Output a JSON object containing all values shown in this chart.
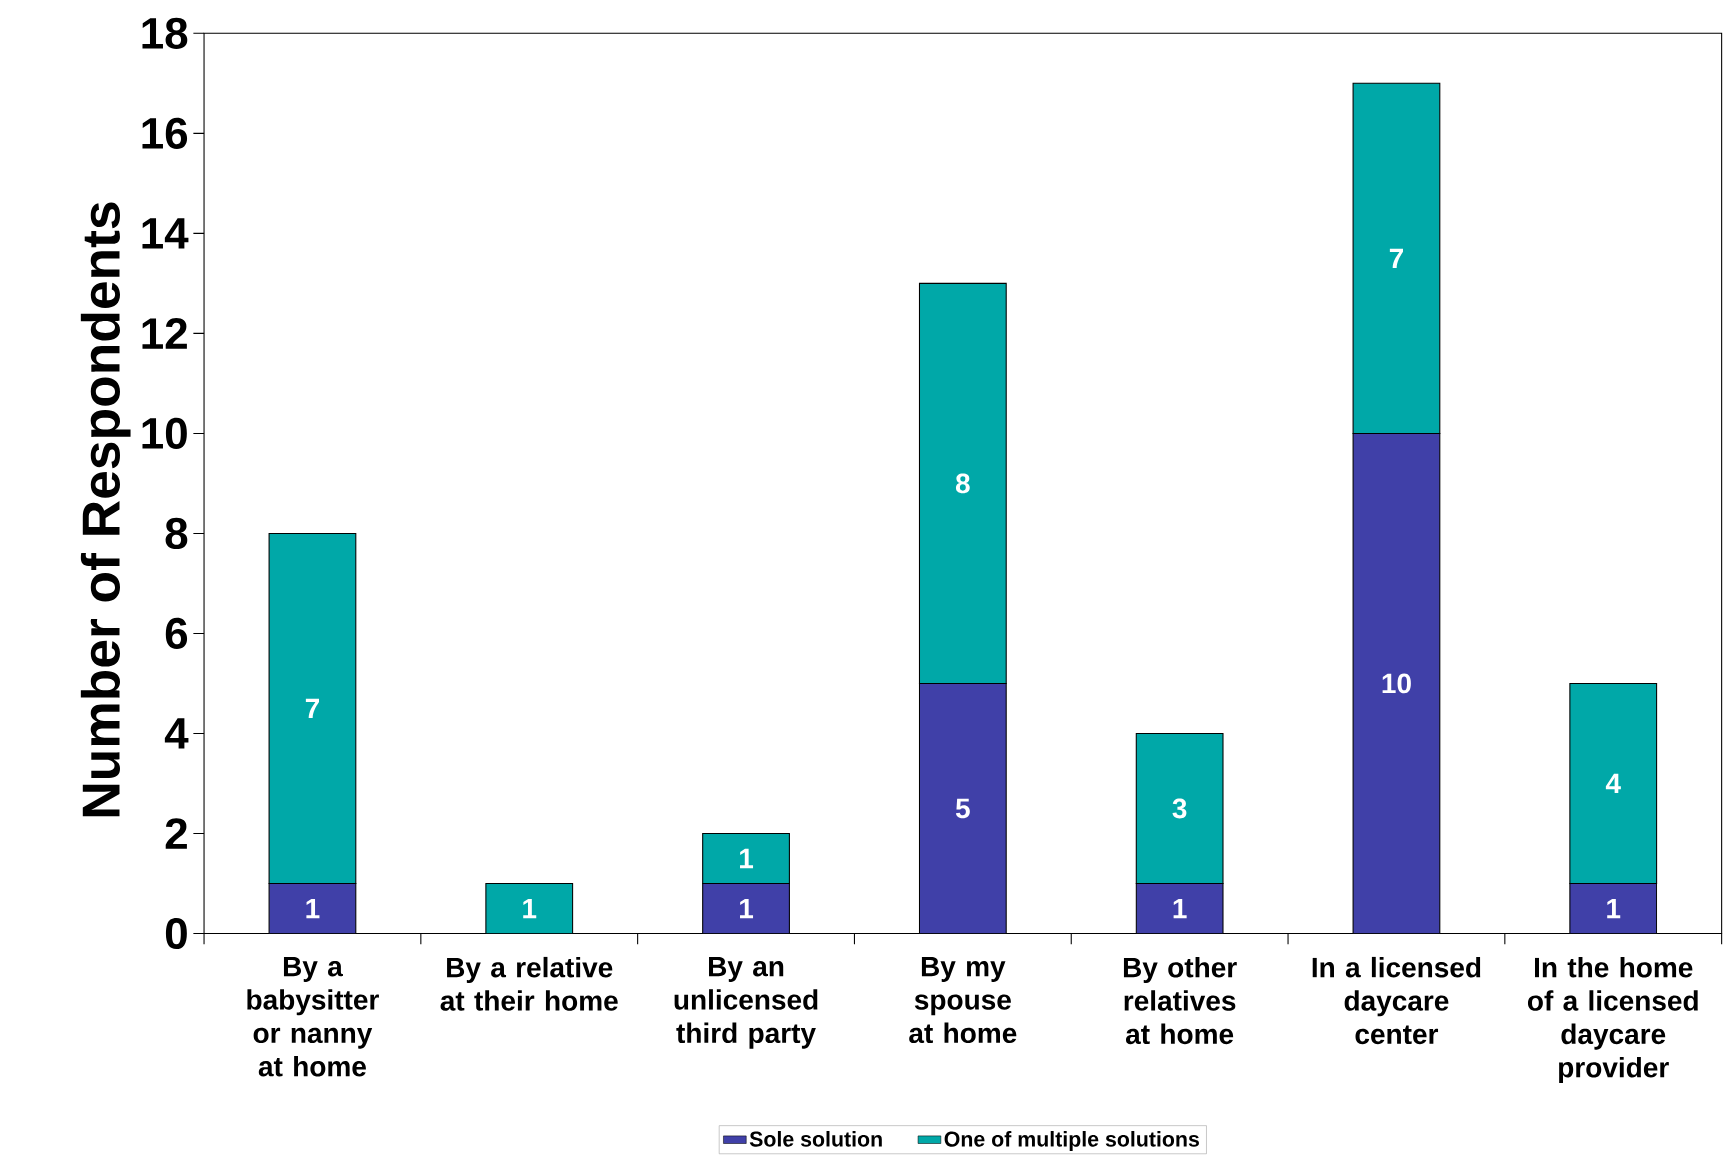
{
  "chart_data": {
    "type": "bar",
    "stacked": true,
    "ylabel": "Number of Respondents",
    "categories": [
      "By a babysitter or nanny at home",
      "By a relative at their home",
      "By an unlicensed third party",
      "By my spouse at home",
      "By other relatives at home",
      "In a licensed daycare center",
      "In the home of a licensed daycare provider"
    ],
    "series": [
      {
        "name": "Sole solution",
        "color": "#4040a8",
        "values": [
          1,
          null,
          1,
          5,
          1,
          10,
          1
        ]
      },
      {
        "name": "One of multiple solutions",
        "color": "#00a8a8",
        "values": [
          7,
          1,
          1,
          8,
          3,
          7,
          4
        ]
      }
    ],
    "ylim": [
      0,
      18
    ],
    "yticks": [
      0,
      2,
      4,
      6,
      8,
      10,
      12,
      14,
      16,
      18
    ],
    "data_labels": true,
    "legend": "bottom",
    "grid": false
  }
}
